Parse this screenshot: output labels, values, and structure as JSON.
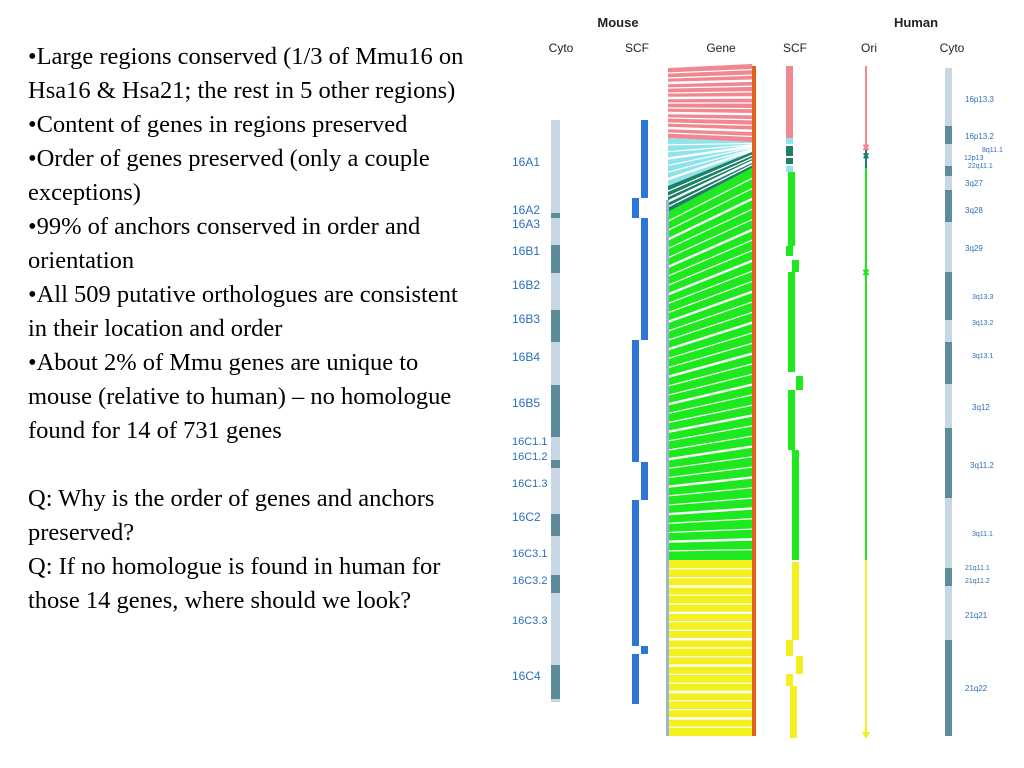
{
  "slide": {
    "bullets": [
      "•Large regions conserved (1/3 of Mmu16 on Hsa16 & Hsa21; the rest in 5 other regions)",
      "•Content of genes in regions preserved",
      "•Order of genes preserved (only a couple exceptions)",
      "•99% of anchors conserved in order and orientation",
      "•All 509 putative orthologues are consistent in their location and order",
      "•About 2% of Mmu genes are unique to mouse (relative to human) – no homologue found for 14 of 731 genes"
    ],
    "questions": [
      "Q: Why is the order of genes and anchors preserved?",
      "Q: If no homologue is found in human for those 14 genes, where should we look?"
    ]
  },
  "figure": {
    "group_labels": {
      "mouse": "Mouse",
      "human": "Human"
    },
    "columns": {
      "mouse_cyto": "Cyto",
      "mouse_scf": "SCF",
      "gene": "Gene",
      "human_scf": "SCF",
      "ori": "Ori",
      "human_cyto": "Cyto"
    },
    "mouse_bands": [
      "16A1",
      "16A2",
      "16A3",
      "16B1",
      "16B2",
      "16B3",
      "16B4",
      "16B5",
      "16C1.1",
      "16C1.2",
      "16C1.3",
      "16C2",
      "16C3.1",
      "16C3.2",
      "16C3.3",
      "16C4"
    ],
    "human_bands": [
      "16p13.3",
      "16p13.2",
      "8q11.1",
      "12p13",
      "22q11.1",
      "3q27",
      "3q28",
      "3q29",
      "3q13.3",
      "3q13.2",
      "3q13.1",
      "3q12",
      "3q11.2",
      "3q11.1",
      "21q11.1",
      "21q11.2",
      "21q21",
      "21q22"
    ],
    "colors": {
      "mouse_band_text": "#2a6fc0",
      "human_band_text": "#2f6fb2",
      "cyto_light": "#c7d7e3",
      "cyto_dark": "#5c8b9a",
      "scf_blue": "#2e76d6",
      "region_pink": "#f08891",
      "region_cyan": "#8fe3ea",
      "region_teal": "#1c8066",
      "region_green": "#1ee81e",
      "region_yellow": "#f2f020",
      "gene_edge": "#e0601c"
    }
  }
}
